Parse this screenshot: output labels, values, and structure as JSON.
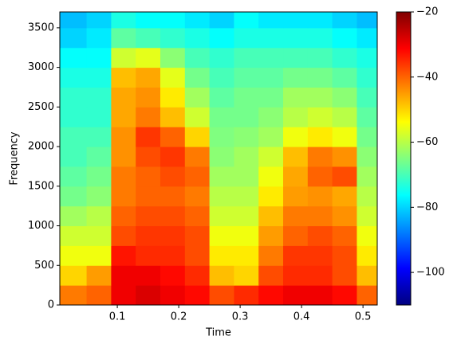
{
  "chart_data": {
    "type": "heatmap",
    "xlabel": "Time",
    "ylabel": "Frequency",
    "xlim": [
      0.0064,
      0.5232
    ],
    "ylim": [
      0,
      3700
    ],
    "xticks": [
      0.1,
      0.2,
      0.3,
      0.4,
      0.5
    ],
    "yticks": [
      0,
      500,
      1000,
      1500,
      2000,
      2500,
      3000,
      3500
    ],
    "x_edges": [
      0.0064,
      0.05,
      0.09,
      0.13,
      0.17,
      0.21,
      0.25,
      0.29,
      0.33,
      0.37,
      0.41,
      0.45,
      0.49,
      0.5232
    ],
    "y_edges": [
      0,
      250,
      500,
      750,
      1000,
      1250,
      1500,
      1750,
      2000,
      2250,
      2500,
      2750,
      3000,
      3250,
      3500,
      3700
    ],
    "colormap": "jet",
    "clim": [
      -110,
      -20
    ],
    "cticks": [
      {
        "value": -100,
        "label": "−100"
      },
      {
        "value": -80,
        "label": "−80"
      },
      {
        "value": -60,
        "label": "−60"
      },
      {
        "value": -40,
        "label": "−40"
      },
      {
        "value": -20,
        "label": "−20"
      }
    ],
    "z": [
      [
        -42,
        -40,
        -30,
        -28,
        -30,
        -32,
        -38,
        -35,
        -32,
        -30,
        -30,
        -32,
        -40
      ],
      [
        -50,
        -45,
        -30,
        -30,
        -32,
        -35,
        -48,
        -50,
        -38,
        -35,
        -35,
        -38,
        -48
      ],
      [
        -55,
        -55,
        -33,
        -35,
        -35,
        -38,
        -52,
        -52,
        -42,
        -36,
        -36,
        -38,
        -52
      ],
      [
        -58,
        -58,
        -38,
        -36,
        -36,
        -38,
        -55,
        -55,
        -45,
        -40,
        -38,
        -40,
        -55
      ],
      [
        -62,
        -60,
        -40,
        -38,
        -38,
        -40,
        -58,
        -58,
        -48,
        -42,
        -42,
        -44,
        -58
      ],
      [
        -66,
        -64,
        -42,
        -40,
        -40,
        -42,
        -60,
        -60,
        -52,
        -45,
        -44,
        -46,
        -60
      ],
      [
        -68,
        -66,
        -42,
        -40,
        -38,
        -40,
        -62,
        -62,
        -55,
        -46,
        -40,
        -38,
        -62
      ],
      [
        -70,
        -68,
        -44,
        -38,
        -36,
        -42,
        -64,
        -62,
        -58,
        -48,
        -42,
        -44,
        -64
      ],
      [
        -70,
        -70,
        -44,
        -36,
        -40,
        -50,
        -65,
        -64,
        -62,
        -55,
        -52,
        -55,
        -66
      ],
      [
        -72,
        -72,
        -46,
        -42,
        -48,
        -58,
        -66,
        -66,
        -64,
        -60,
        -58,
        -60,
        -68
      ],
      [
        -72,
        -72,
        -46,
        -44,
        -52,
        -62,
        -68,
        -66,
        -66,
        -62,
        -62,
        -64,
        -70
      ],
      [
        -74,
        -74,
        -48,
        -46,
        -56,
        -66,
        -70,
        -68,
        -68,
        -66,
        -66,
        -68,
        -72
      ],
      [
        -76,
        -76,
        -58,
        -56,
        -64,
        -70,
        -72,
        -70,
        -70,
        -70,
        -70,
        -72,
        -74
      ],
      [
        -80,
        -78,
        -68,
        -70,
        -72,
        -74,
        -76,
        -74,
        -74,
        -74,
        -74,
        -76,
        -78
      ],
      [
        -82,
        -80,
        -74,
        -76,
        -76,
        -78,
        -80,
        -76,
        -78,
        -78,
        -78,
        -80,
        -82
      ]
    ]
  }
}
